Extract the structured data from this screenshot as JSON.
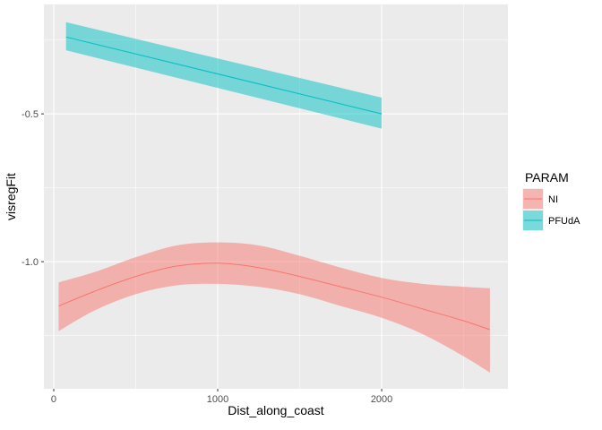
{
  "chart_data": {
    "type": "line",
    "xlabel": "Dist_along_coast",
    "ylabel": "visregFit",
    "xlim": [
      -60,
      2770
    ],
    "ylim": [
      -1.43,
      -0.13
    ],
    "x_ticks": [
      0,
      1000,
      2000
    ],
    "x_tick_labels": [
      "0",
      "1000",
      "2000"
    ],
    "x_minor": [
      500,
      1500,
      2500
    ],
    "y_ticks": [
      -1.0,
      -0.5
    ],
    "y_tick_labels": [
      "-1.0",
      "-0.5"
    ],
    "y_minor": [
      -1.25,
      -0.75,
      -0.25
    ],
    "grid": true,
    "legend": {
      "title": "PARAM",
      "position": "right"
    },
    "series": [
      {
        "name": "NI",
        "color": "#F8766D",
        "x": [
          30,
          250,
          500,
          750,
          1000,
          1250,
          1500,
          1750,
          2000,
          2250,
          2500,
          2660
        ],
        "y": [
          -1.15,
          -1.1,
          -1.05,
          -1.015,
          -1.005,
          -1.02,
          -1.05,
          -1.085,
          -1.12,
          -1.16,
          -1.2,
          -1.23
        ],
        "lower": [
          -1.235,
          -1.165,
          -1.11,
          -1.08,
          -1.075,
          -1.085,
          -1.11,
          -1.15,
          -1.19,
          -1.245,
          -1.32,
          -1.375
        ],
        "upper": [
          -1.07,
          -1.035,
          -0.985,
          -0.945,
          -0.935,
          -0.945,
          -0.98,
          -1.02,
          -1.055,
          -1.075,
          -1.085,
          -1.09
        ]
      },
      {
        "name": "PFUdA",
        "color": "#00BFC4",
        "x": [
          75,
          2000
        ],
        "y": [
          -0.24,
          -0.5
        ],
        "lower": [
          -0.285,
          -0.55
        ],
        "upper": [
          -0.19,
          -0.445
        ]
      }
    ]
  }
}
